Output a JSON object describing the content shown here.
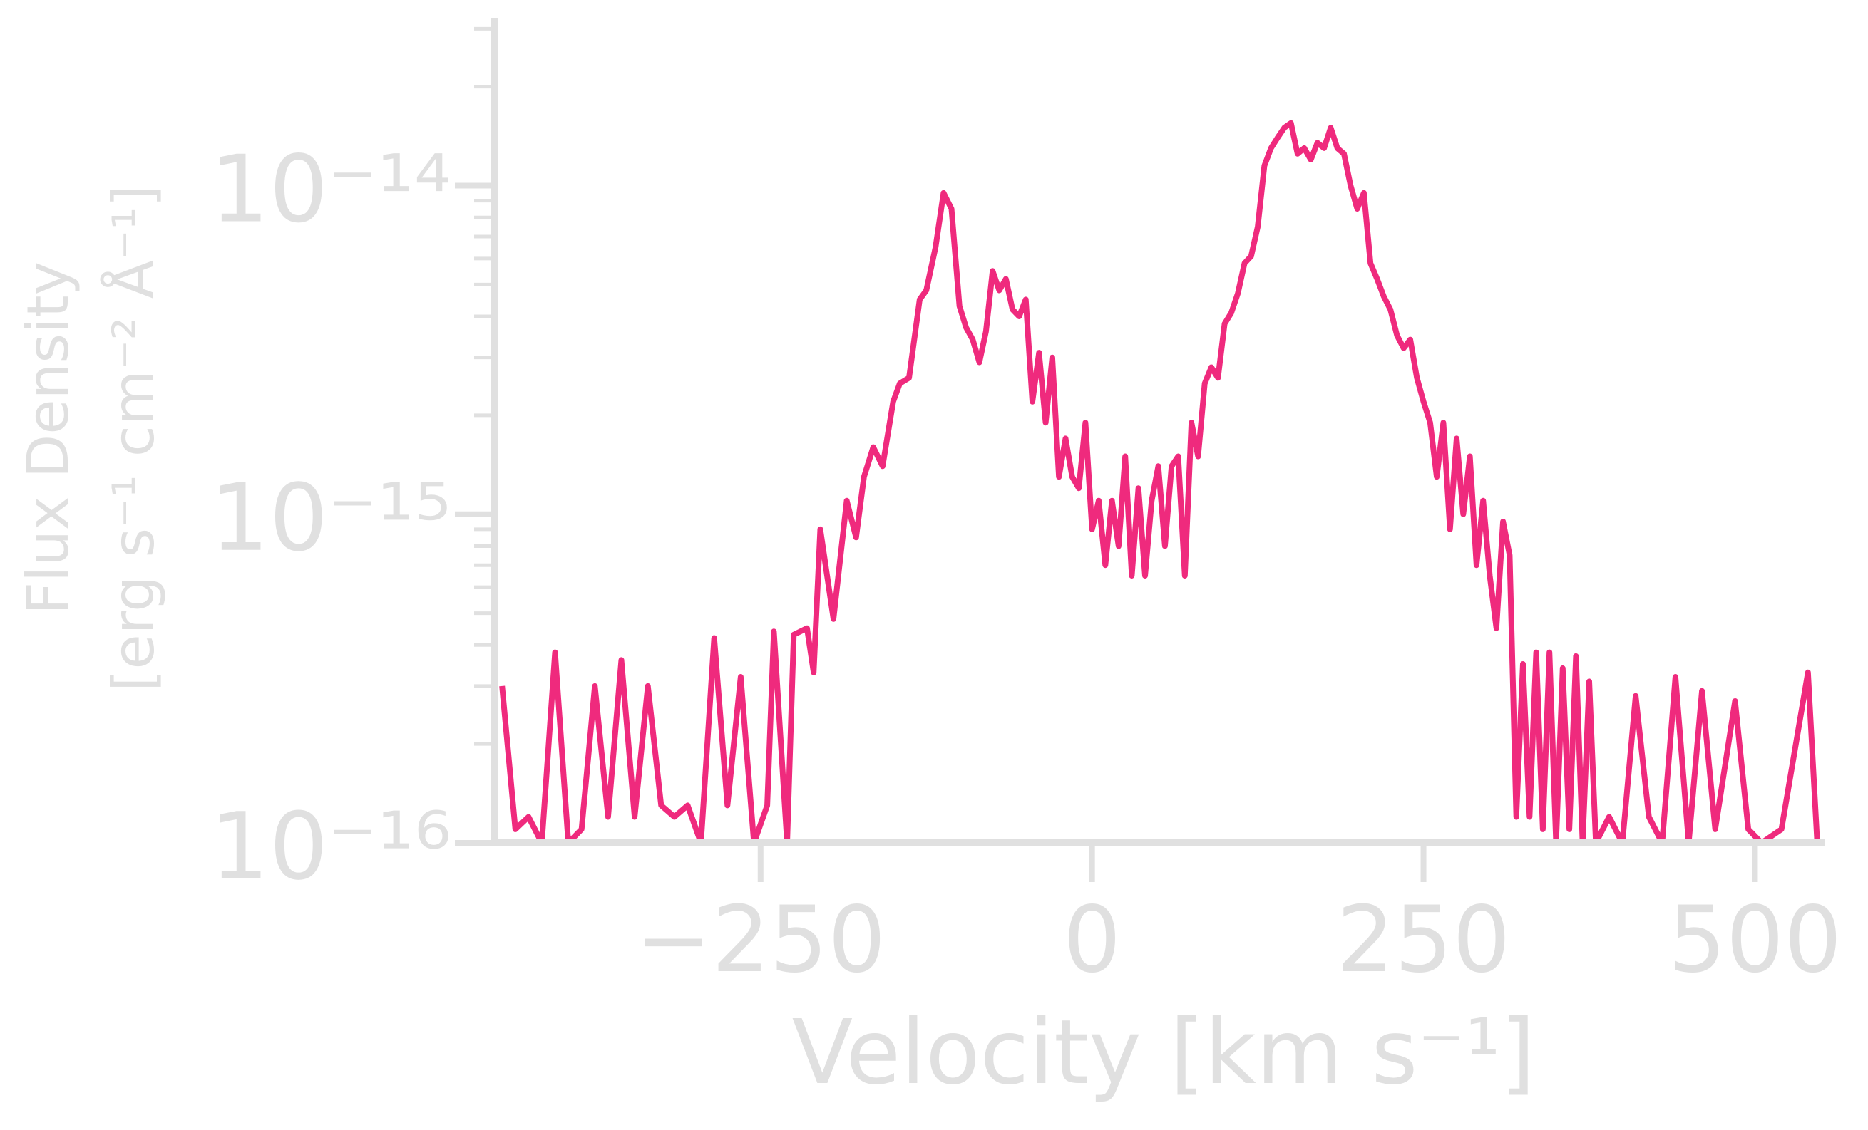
{
  "chart_data": {
    "type": "line",
    "xlabel": "Velocity [km s⁻¹]",
    "ylabel": [
      "Flux Density",
      "[erg s⁻¹ cm⁻² Å⁻¹]"
    ],
    "yscale": "log",
    "xlim": [
      -451,
      553
    ],
    "ylim": [
      1e-16,
      3.24e-14
    ],
    "xticks": [
      {
        "value": -250,
        "label": "−250"
      },
      0,
      250,
      500
    ],
    "yticks": [
      {
        "value": 1e-16,
        "label": "10⁻¹⁶"
      },
      {
        "value": 1e-15,
        "label": "10⁻¹⁵"
      },
      {
        "value": 1e-14,
        "label": "10⁻¹⁴"
      }
    ],
    "yminorticks": [
      2e-16,
      3e-16,
      4e-16,
      5e-16,
      6e-16,
      7e-16,
      8e-16,
      9e-16,
      2e-15,
      3e-15,
      4e-15,
      5e-15,
      6e-15,
      7e-15,
      8e-15,
      9e-15,
      2e-14,
      3e-14
    ],
    "axis_color": "#e0e0e0",
    "series": [
      {
        "color": "#ef2a7d",
        "x": [
          -445,
          -435,
          -425,
          -415,
          -405,
          -395,
          -385,
          -375,
          -365,
          -355,
          -345,
          -335,
          -325,
          -315,
          -305,
          -295,
          -285,
          -275,
          -265,
          -255,
          -245,
          -240,
          -230,
          -225,
          -215,
          -210,
          -205,
          -195,
          -185,
          -178,
          -172,
          -165,
          -158,
          -150,
          -145,
          -138,
          -130,
          -125,
          -118,
          -112,
          -106,
          -100,
          -95,
          -90,
          -85,
          -80,
          -75,
          -70,
          -65,
          -60,
          -55,
          -50,
          -45,
          -40,
          -35,
          -30,
          -25,
          -20,
          -15,
          -10,
          -5,
          0,
          5,
          10,
          15,
          20,
          25,
          30,
          35,
          40,
          45,
          50,
          55,
          60,
          65,
          70,
          75,
          80,
          85,
          90,
          95,
          100,
          105,
          110,
          115,
          120,
          125,
          130,
          135,
          140,
          145,
          150,
          155,
          160,
          165,
          170,
          175,
          180,
          185,
          190,
          195,
          200,
          205,
          210,
          215,
          220,
          225,
          230,
          235,
          240,
          245,
          250,
          255,
          260,
          265,
          270,
          275,
          280,
          285,
          290,
          295,
          300,
          305,
          310,
          315,
          320,
          325,
          330,
          335,
          340,
          345,
          350,
          355,
          360,
          365,
          370,
          375,
          380,
          390,
          400,
          410,
          420,
          430,
          440,
          450,
          460,
          470,
          485,
          495,
          505,
          520,
          540,
          547
        ],
        "values": [
          3e-16,
          1.1e-16,
          1.2e-16,
          1e-16,
          3.8e-16,
          1e-16,
          1.1e-16,
          3e-16,
          1.2e-16,
          3.6e-16,
          1.2e-16,
          3e-16,
          1.3e-16,
          1.2e-16,
          1.3e-16,
          1e-16,
          4.2e-16,
          1.3e-16,
          3.2e-16,
          1e-16,
          1.3e-16,
          4.4e-16,
          1e-16,
          4.3e-16,
          4.5e-16,
          3.3e-16,
          9e-16,
          4.8e-16,
          1.1e-15,
          8.5e-16,
          1.3e-15,
          1.6e-15,
          1.4e-15,
          2.2e-15,
          2.5e-15,
          2.6e-15,
          4.5e-15,
          4.8e-15,
          6.5e-15,
          9.5e-15,
          8.5e-15,
          4.3e-15,
          3.7e-15,
          3.4e-15,
          2.9e-15,
          3.6e-15,
          5.5e-15,
          4.8e-15,
          5.2e-15,
          4.2e-15,
          4e-15,
          4.5e-15,
          2.2e-15,
          3.1e-15,
          1.9e-15,
          3e-15,
          1.3e-15,
          1.7e-15,
          1.3e-15,
          1.2e-15,
          1.9e-15,
          9e-16,
          1.1e-15,
          7e-16,
          1.1e-15,
          8e-16,
          1.5e-15,
          6.5e-16,
          1.2e-15,
          6.5e-16,
          1.1e-15,
          1.4e-15,
          8e-16,
          1.4e-15,
          1.5e-15,
          6.5e-16,
          1.9e-15,
          1.5e-15,
          2.5e-15,
          2.8e-15,
          2.6e-15,
          3.8e-15,
          4.1e-15,
          4.7e-15,
          5.8e-15,
          6.1e-15,
          7.5e-15,
          1.15e-14,
          1.3e-14,
          1.4e-14,
          1.5e-14,
          1.55e-14,
          1.25e-14,
          1.3e-14,
          1.2e-14,
          1.35e-14,
          1.3e-14,
          1.5e-14,
          1.3e-14,
          1.25e-14,
          1e-14,
          8.5e-15,
          9.5e-15,
          5.8e-15,
          5.2e-15,
          4.6e-15,
          4.2e-15,
          3.5e-15,
          3.2e-15,
          3.4e-15,
          2.6e-15,
          2.2e-15,
          1.9e-15,
          1.3e-15,
          1.9e-15,
          9e-16,
          1.7e-15,
          1e-15,
          1.5e-15,
          7e-16,
          1.1e-15,
          6.5e-16,
          4.5e-16,
          9.5e-16,
          7.5e-16,
          1.2e-16,
          3.5e-16,
          1.2e-16,
          3.8e-16,
          1.1e-16,
          3.8e-16,
          1e-16,
          3.4e-16,
          1.1e-16,
          3.7e-16,
          1e-16,
          3.1e-16,
          1e-16,
          1.2e-16,
          1e-16,
          2.8e-16,
          1.2e-16,
          1e-16,
          3.2e-16,
          1e-16,
          2.9e-16,
          1.1e-16,
          2.7e-16,
          1.1e-16,
          1e-16,
          1.1e-16,
          3.3e-16,
          1e-16
        ]
      }
    ]
  }
}
